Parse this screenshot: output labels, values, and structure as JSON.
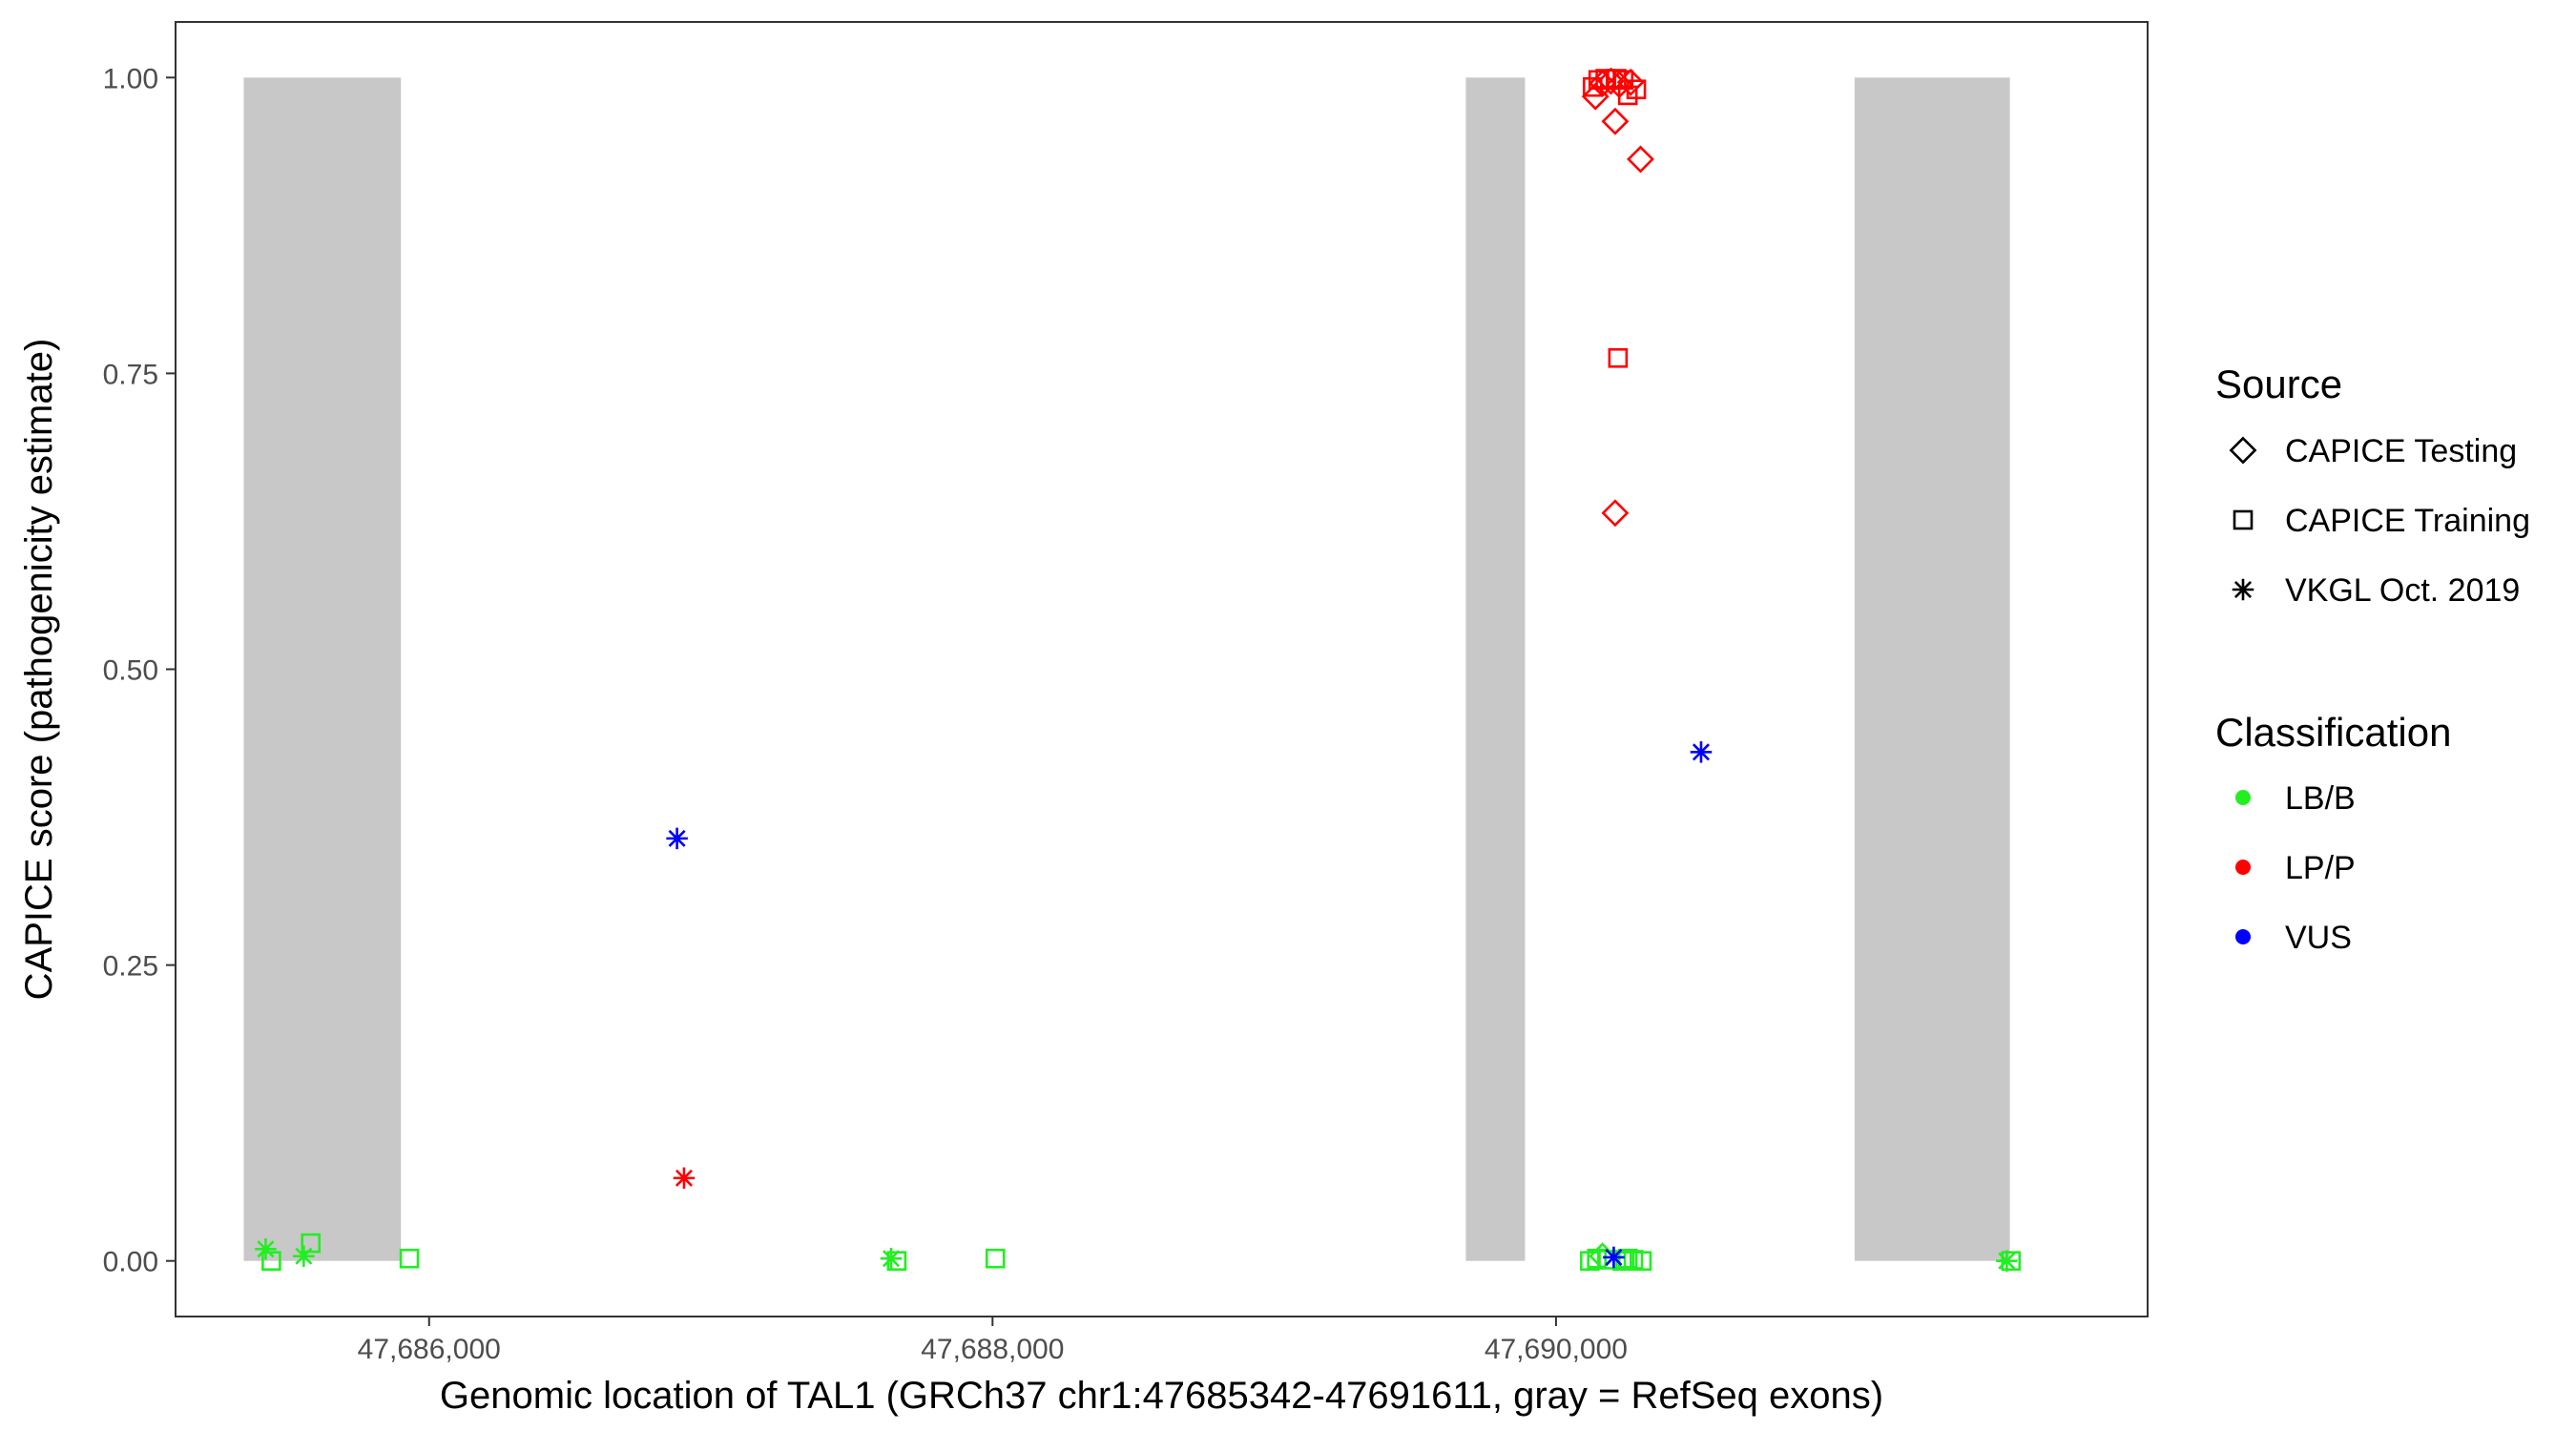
{
  "chart_data": {
    "type": "scatter",
    "title": "",
    "xlabel": "Genomic location of TAL1 (GRCh37 chr1:47685342-47691611, gray = RefSeq exons)",
    "ylabel": "CAPICE score (pathogenicity estimate)",
    "xlim": [
      47685100,
      47692100
    ],
    "ylim": [
      -0.047,
      1.047
    ],
    "x_ticks": [
      47686000,
      47688000,
      47690000
    ],
    "x_tick_labels": [
      "47,686,000",
      "47,688,000",
      "47,690,000"
    ],
    "y_ticks": [
      0,
      0.25,
      0.5,
      0.75,
      1.0
    ],
    "y_tick_labels": [
      "0.00",
      "0.25",
      "0.50",
      "0.75",
      "1.00"
    ],
    "grid": false,
    "exon_color": "#c8c8c8",
    "exons": [
      [
        47685342,
        47685900
      ],
      [
        47689680,
        47689890
      ],
      [
        47691060,
        47691611
      ]
    ],
    "legend_position": "right",
    "source_legend": {
      "title": "Source",
      "items": [
        {
          "label": "CAPICE Testing",
          "shape": "diamond"
        },
        {
          "label": "CAPICE Training",
          "shape": "square"
        },
        {
          "label": "VKGL Oct. 2019",
          "shape": "asterisk"
        }
      ]
    },
    "classification_legend": {
      "title": "Classification",
      "items": [
        {
          "label": "LB/B",
          "color": "#22ee22"
        },
        {
          "label": "LP/P",
          "color": "#ff0000"
        },
        {
          "label": "VUS",
          "color": "#0000ff"
        }
      ]
    },
    "points": [
      {
        "x": 47685420,
        "y": 0.01,
        "source": "VKGL Oct. 2019",
        "class": "LB/B"
      },
      {
        "x": 47685440,
        "y": 0.0,
        "source": "CAPICE Training",
        "class": "LB/B"
      },
      {
        "x": 47685555,
        "y": 0.004,
        "source": "VKGL Oct. 2019",
        "class": "LB/B"
      },
      {
        "x": 47685580,
        "y": 0.015,
        "source": "CAPICE Training",
        "class": "LB/B"
      },
      {
        "x": 47685930,
        "y": 0.002,
        "source": "CAPICE Training",
        "class": "LB/B"
      },
      {
        "x": 47686880,
        "y": 0.357,
        "source": "VKGL Oct. 2019",
        "class": "VUS"
      },
      {
        "x": 47686905,
        "y": 0.07,
        "source": "VKGL Oct. 2019",
        "class": "LP/P"
      },
      {
        "x": 47687640,
        "y": 0.002,
        "source": "VKGL Oct. 2019",
        "class": "LB/B"
      },
      {
        "x": 47687660,
        "y": 0.0,
        "source": "CAPICE Training",
        "class": "LB/B"
      },
      {
        "x": 47688010,
        "y": 0.002,
        "source": "CAPICE Training",
        "class": "LB/B"
      },
      {
        "x": 47690130,
        "y": 0.992,
        "source": "CAPICE Training",
        "class": "LP/P"
      },
      {
        "x": 47690140,
        "y": 0.984,
        "source": "CAPICE Testing",
        "class": "LP/P"
      },
      {
        "x": 47690150,
        "y": 0.998,
        "source": "CAPICE Training",
        "class": "LP/P"
      },
      {
        "x": 47690165,
        "y": 0.995,
        "source": "CAPICE Testing",
        "class": "LP/P"
      },
      {
        "x": 47690175,
        "y": 0.999,
        "source": "CAPICE Training",
        "class": "LP/P"
      },
      {
        "x": 47690195,
        "y": 0.997,
        "source": "CAPICE Testing",
        "class": "LP/P"
      },
      {
        "x": 47690210,
        "y": 0.963,
        "source": "CAPICE Testing",
        "class": "LP/P"
      },
      {
        "x": 47690215,
        "y": 0.999,
        "source": "CAPICE Training",
        "class": "LP/P"
      },
      {
        "x": 47690225,
        "y": 0.994,
        "source": "CAPICE Testing",
        "class": "LP/P"
      },
      {
        "x": 47690240,
        "y": 0.998,
        "source": "CAPICE Training",
        "class": "LP/P"
      },
      {
        "x": 47690255,
        "y": 0.985,
        "source": "CAPICE Training",
        "class": "LP/P"
      },
      {
        "x": 47690265,
        "y": 0.996,
        "source": "CAPICE Testing",
        "class": "LP/P"
      },
      {
        "x": 47690285,
        "y": 0.99,
        "source": "CAPICE Training",
        "class": "LP/P"
      },
      {
        "x": 47690300,
        "y": 0.931,
        "source": "CAPICE Testing",
        "class": "LP/P"
      },
      {
        "x": 47690220,
        "y": 0.763,
        "source": "CAPICE Training",
        "class": "LP/P"
      },
      {
        "x": 47690210,
        "y": 0.632,
        "source": "CAPICE Testing",
        "class": "LP/P"
      },
      {
        "x": 47690120,
        "y": 0.0,
        "source": "CAPICE Training",
        "class": "LB/B"
      },
      {
        "x": 47690145,
        "y": 0.002,
        "source": "CAPICE Training",
        "class": "LB/B"
      },
      {
        "x": 47690165,
        "y": 0.004,
        "source": "CAPICE Testing",
        "class": "LB/B"
      },
      {
        "x": 47690185,
        "y": 0.001,
        "source": "CAPICE Training",
        "class": "LB/B"
      },
      {
        "x": 47690235,
        "y": 0.0,
        "source": "CAPICE Training",
        "class": "LB/B"
      },
      {
        "x": 47690255,
        "y": 0.002,
        "source": "CAPICE Training",
        "class": "LB/B"
      },
      {
        "x": 47690275,
        "y": 0.001,
        "source": "CAPICE Training",
        "class": "LB/B"
      },
      {
        "x": 47690305,
        "y": 0.0,
        "source": "CAPICE Training",
        "class": "LB/B"
      },
      {
        "x": 47690205,
        "y": 0.003,
        "source": "VKGL Oct. 2019",
        "class": "VUS"
      },
      {
        "x": 47690515,
        "y": 0.43,
        "source": "VKGL Oct. 2019",
        "class": "VUS"
      },
      {
        "x": 47691600,
        "y": 0.0,
        "source": "VKGL Oct. 2019",
        "class": "LB/B"
      },
      {
        "x": 47691615,
        "y": 0.0,
        "source": "CAPICE Training",
        "class": "LB/B"
      }
    ]
  }
}
